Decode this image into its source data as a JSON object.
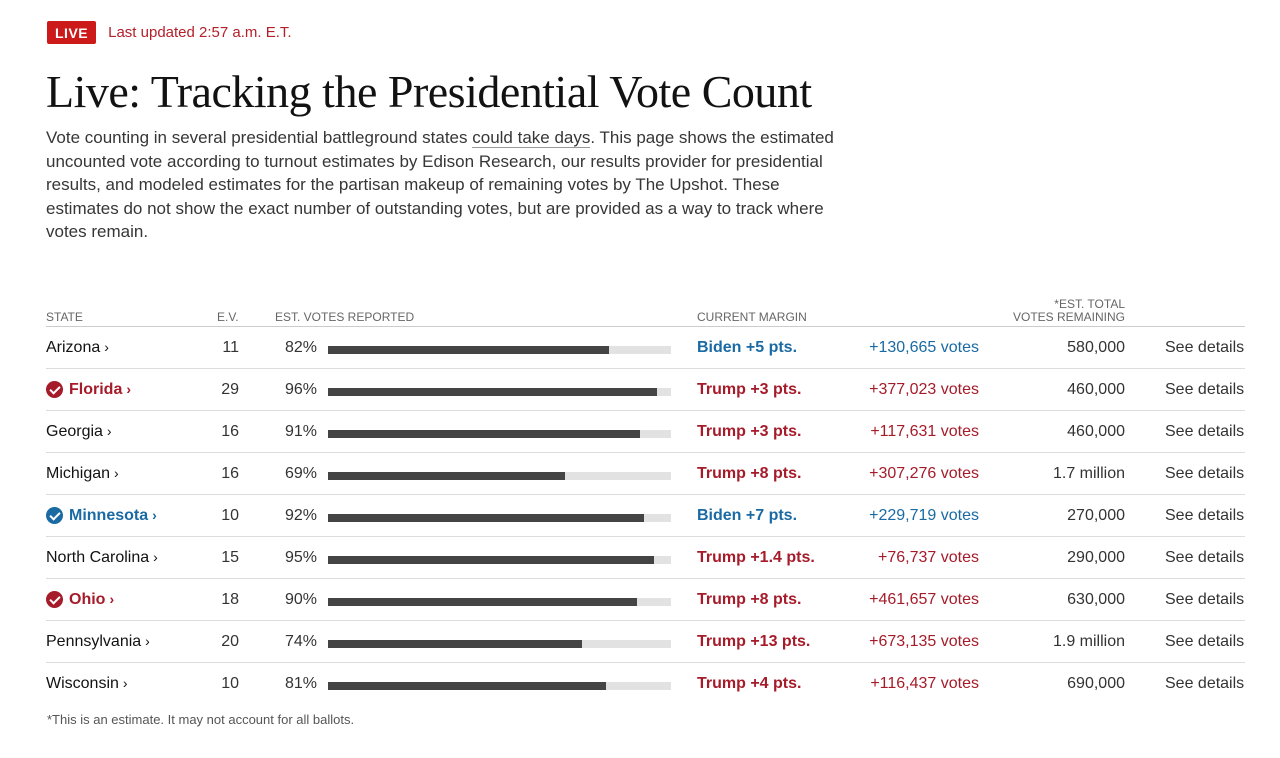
{
  "header": {
    "live_label": "LIVE",
    "updated": "Last updated 2:57 a.m. E.T."
  },
  "title": "Live: Tracking the Presidential Vote Count",
  "intro": {
    "before_link": "Vote counting in several presidential battleground states ",
    "link": "could take days",
    "after_link": ". This page shows the estimated uncounted vote according to turnout estimates by Edison Research, our results provider for presidential results, and modeled estimates for the partisan makeup of remaining votes by The Upshot. These estimates do not show the exact number of outstanding votes, but are provided as a way to track where votes remain."
  },
  "columns": {
    "state": "STATE",
    "ev": "E.V.",
    "reported": "EST. VOTES REPORTED",
    "margin": "CURRENT MARGIN",
    "remaining_line1": "*EST. TOTAL",
    "remaining_line2": "VOTES REMAINING"
  },
  "colors": {
    "biden": "#1a6aa3",
    "trump": "#a61b29",
    "black": "#121212"
  },
  "rows": [
    {
      "state": "Arizona",
      "chev": "›",
      "won": "",
      "ev": "11",
      "pct_label": "82%",
      "pct": 82,
      "margin": "Biden +5 pts.",
      "party": "biden",
      "votes": "+130,665 votes",
      "remaining": "580,000",
      "details": "See details"
    },
    {
      "state": "Florida",
      "chev": "›",
      "won": "trump",
      "ev": "29",
      "pct_label": "96%",
      "pct": 96,
      "margin": "Trump +3 pts.",
      "party": "trump",
      "votes": "+377,023 votes",
      "remaining": "460,000",
      "details": "See details"
    },
    {
      "state": "Georgia",
      "chev": "›",
      "won": "",
      "ev": "16",
      "pct_label": "91%",
      "pct": 91,
      "margin": "Trump +3 pts.",
      "party": "trump",
      "votes": "+117,631 votes",
      "remaining": "460,000",
      "details": "See details"
    },
    {
      "state": "Michigan",
      "chev": "›",
      "won": "",
      "ev": "16",
      "pct_label": "69%",
      "pct": 69,
      "margin": "Trump +8 pts.",
      "party": "trump",
      "votes": "+307,276 votes",
      "remaining": "1.7 million",
      "details": "See details"
    },
    {
      "state": "Minnesota",
      "chev": "›",
      "won": "biden",
      "ev": "10",
      "pct_label": "92%",
      "pct": 92,
      "margin": "Biden +7 pts.",
      "party": "biden",
      "votes": "+229,719 votes",
      "remaining": "270,000",
      "details": "See details"
    },
    {
      "state": "North Carolina",
      "chev": "›",
      "won": "",
      "ev": "15",
      "pct_label": "95%",
      "pct": 95,
      "margin": "Trump +1.4 pts.",
      "party": "trump",
      "votes": "+76,737 votes",
      "remaining": "290,000",
      "details": "See details"
    },
    {
      "state": "Ohio",
      "chev": "›",
      "won": "trump",
      "ev": "18",
      "pct_label": "90%",
      "pct": 90,
      "margin": "Trump +8 pts.",
      "party": "trump",
      "votes": "+461,657 votes",
      "remaining": "630,000",
      "details": "See details"
    },
    {
      "state": "Pennsylvania",
      "chev": "›",
      "won": "",
      "ev": "20",
      "pct_label": "74%",
      "pct": 74,
      "margin": "Trump +13 pts.",
      "party": "trump",
      "votes": "+673,135 votes",
      "remaining": "1.9 million",
      "details": "See details"
    },
    {
      "state": "Wisconsin",
      "chev": "›",
      "won": "",
      "ev": "10",
      "pct_label": "81%",
      "pct": 81,
      "margin": "Trump +4 pts.",
      "party": "trump",
      "votes": "+116,437 votes",
      "remaining": "690,000",
      "details": "See details"
    }
  ],
  "footnote": "*This is an estimate. It may not account for all ballots."
}
